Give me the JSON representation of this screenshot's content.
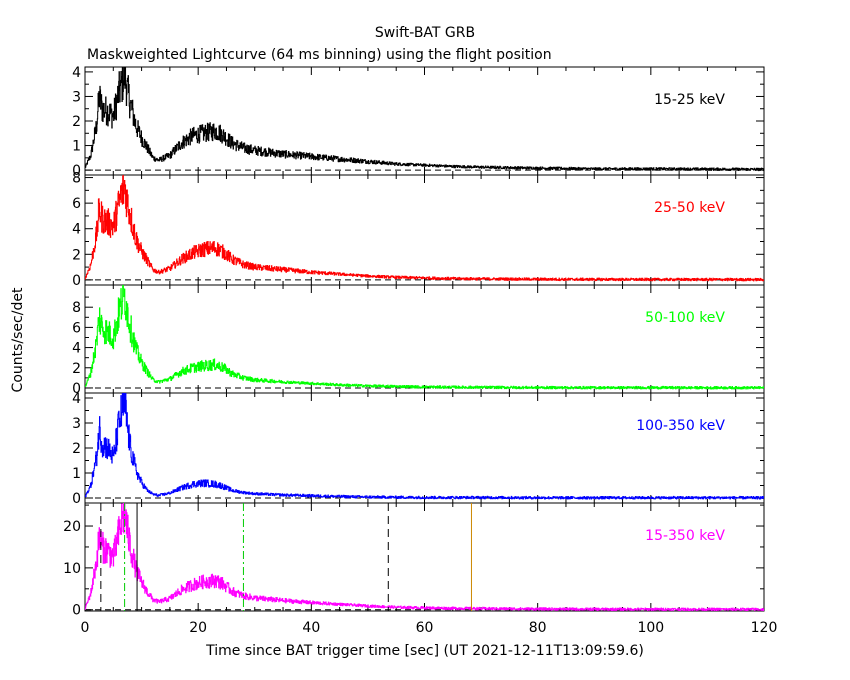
{
  "figure": {
    "title": "Swift-BAT GRB",
    "subtitle": "Maskweighted Lightcurve (64 ms binning) using the flight position",
    "xlabel": "Time since BAT trigger time [sec] (UT 2021-12-11T13:09:59.6)",
    "ylabel": "Counts/sec/det"
  },
  "chart_data": [
    {
      "type": "line",
      "label": "15-25 keV",
      "color": "#000000",
      "xlim": [
        0,
        120
      ],
      "ylim": [
        -0.2,
        4.2
      ],
      "yticks": [
        0,
        1,
        2,
        3,
        4
      ],
      "x": [
        0,
        1,
        2,
        2.5,
        3,
        4,
        5,
        6,
        6.5,
        7,
        7.5,
        8,
        9,
        10,
        11,
        12,
        13,
        15,
        17,
        19,
        21,
        23,
        24,
        25,
        26,
        28,
        30,
        35,
        40,
        45,
        50,
        55,
        60,
        65,
        70,
        80,
        90,
        100,
        110,
        120
      ],
      "y": [
        0.1,
        0.6,
        1.8,
        3.0,
        2.5,
        2.4,
        2.2,
        3.2,
        3.5,
        3.9,
        3.2,
        2.7,
        1.8,
        1.3,
        0.9,
        0.5,
        0.4,
        0.6,
        1.1,
        1.4,
        1.5,
        1.6,
        1.5,
        1.3,
        1.1,
        0.9,
        0.8,
        0.65,
        0.55,
        0.45,
        0.35,
        0.25,
        0.2,
        0.15,
        0.12,
        0.08,
        0.05,
        0.05,
        0.04,
        0.03
      ]
    },
    {
      "type": "line",
      "label": "25-50 keV",
      "color": "#ff0000",
      "xlim": [
        0,
        120
      ],
      "ylim": [
        -0.4,
        8.2
      ],
      "yticks": [
        0,
        2,
        4,
        6,
        8
      ],
      "x": [
        0,
        1,
        2,
        2.5,
        3,
        4,
        5,
        6,
        6.5,
        7,
        7.5,
        8,
        9,
        10,
        11,
        12,
        13,
        15,
        17,
        19,
        21,
        23,
        24,
        25,
        26,
        28,
        30,
        35,
        40,
        45,
        50,
        55,
        60,
        65,
        70,
        80,
        90,
        100,
        110,
        120
      ],
      "y": [
        0.1,
        1.2,
        3.5,
        5.6,
        4.8,
        4.5,
        4.2,
        6.0,
        6.8,
        7.3,
        6.0,
        5.0,
        3.2,
        2.2,
        1.5,
        0.8,
        0.6,
        0.9,
        1.6,
        2.1,
        2.4,
        2.5,
        2.3,
        2.0,
        1.6,
        1.2,
        1.0,
        0.8,
        0.6,
        0.45,
        0.3,
        0.2,
        0.15,
        0.1,
        0.08,
        0.05,
        0.04,
        0.03,
        0.03,
        0.02
      ]
    },
    {
      "type": "line",
      "label": "50-100 keV",
      "color": "#00ff00",
      "xlim": [
        0,
        120
      ],
      "ylim": [
        -0.5,
        10.2
      ],
      "yticks": [
        0,
        2,
        4,
        6,
        8
      ],
      "x": [
        0,
        1,
        2,
        2.5,
        3,
        4,
        5,
        6,
        6.5,
        7,
        7.5,
        8,
        9,
        10,
        11,
        12,
        13,
        15,
        17,
        19,
        21,
        23,
        24,
        25,
        26,
        28,
        30,
        35,
        40,
        45,
        50,
        55,
        60,
        65,
        70,
        80,
        90,
        100,
        110,
        120
      ],
      "y": [
        0.1,
        1.5,
        4.5,
        7.0,
        6.0,
        5.5,
        5.0,
        7.5,
        8.5,
        9.2,
        7.5,
        6.0,
        3.8,
        2.5,
        1.6,
        0.8,
        0.6,
        0.9,
        1.6,
        2.0,
        2.2,
        2.3,
        2.1,
        1.8,
        1.4,
        1.0,
        0.8,
        0.6,
        0.45,
        0.3,
        0.2,
        0.15,
        0.1,
        0.08,
        0.06,
        0.04,
        0.03,
        0.03,
        0.02,
        0.02
      ]
    },
    {
      "type": "line",
      "label": "100-350 keV",
      "color": "#0000ff",
      "xlim": [
        0,
        120
      ],
      "ylim": [
        -0.2,
        4.2
      ],
      "yticks": [
        0,
        1,
        2,
        3,
        4
      ],
      "x": [
        0,
        1,
        2,
        2.5,
        3,
        4,
        5,
        6,
        6.5,
        7,
        7.5,
        8,
        9,
        10,
        11,
        12,
        13,
        15,
        17,
        19,
        21,
        23,
        24,
        25,
        26,
        28,
        30,
        35,
        40,
        45,
        50,
        55,
        60,
        65,
        70,
        80,
        90,
        100,
        110,
        120
      ],
      "y": [
        0.05,
        0.5,
        1.6,
        2.8,
        2.2,
        2.0,
        1.6,
        3.0,
        3.5,
        3.8,
        2.8,
        2.0,
        1.1,
        0.6,
        0.3,
        0.15,
        0.1,
        0.2,
        0.4,
        0.55,
        0.6,
        0.55,
        0.5,
        0.4,
        0.3,
        0.22,
        0.17,
        0.12,
        0.09,
        0.06,
        0.04,
        0.03,
        0.02,
        0.02,
        0.02,
        0.01,
        0.01,
        0.01,
        0.01,
        0.01
      ]
    },
    {
      "type": "line",
      "label": "15-350 keV",
      "color": "#ff00ff",
      "xlim": [
        0,
        120
      ],
      "ylim": [
        -0.3,
        25.5
      ],
      "yticks": [
        0,
        10,
        20
      ],
      "vlines": [
        {
          "x": 2.8,
          "color": "#000000",
          "style": "dashed"
        },
        {
          "x": 7.0,
          "color": "#00cc00",
          "style": "dashdot"
        },
        {
          "x": 9.2,
          "color": "#000000",
          "style": "solid"
        },
        {
          "x": 28.0,
          "color": "#00cc00",
          "style": "dashdot"
        },
        {
          "x": 53.6,
          "color": "#000000",
          "style": "dashed"
        },
        {
          "x": 68.3,
          "color": "#cc8800",
          "style": "solid"
        }
      ],
      "x": [
        0,
        1,
        2,
        2.5,
        3,
        4,
        5,
        6,
        6.5,
        7,
        7.5,
        8,
        9,
        10,
        11,
        12,
        13,
        15,
        17,
        19,
        21,
        23,
        24,
        25,
        26,
        28,
        30,
        35,
        40,
        45,
        50,
        55,
        60,
        65,
        70,
        80,
        90,
        100,
        110,
        120
      ],
      "y": [
        0.3,
        4.0,
        11.5,
        17.5,
        15.0,
        14.0,
        12.5,
        18.5,
        21.5,
        23.5,
        18.5,
        15.0,
        9.5,
        6.5,
        4.2,
        2.4,
        1.9,
        2.7,
        4.7,
        6.0,
        6.7,
        7.0,
        6.5,
        5.5,
        4.4,
        3.3,
        2.8,
        2.2,
        1.7,
        1.3,
        0.9,
        0.6,
        0.45,
        0.35,
        0.28,
        0.18,
        0.13,
        0.12,
        0.1,
        0.08
      ]
    }
  ],
  "xaxis": {
    "ticks": [
      0,
      20,
      40,
      60,
      80,
      100,
      120
    ]
  }
}
